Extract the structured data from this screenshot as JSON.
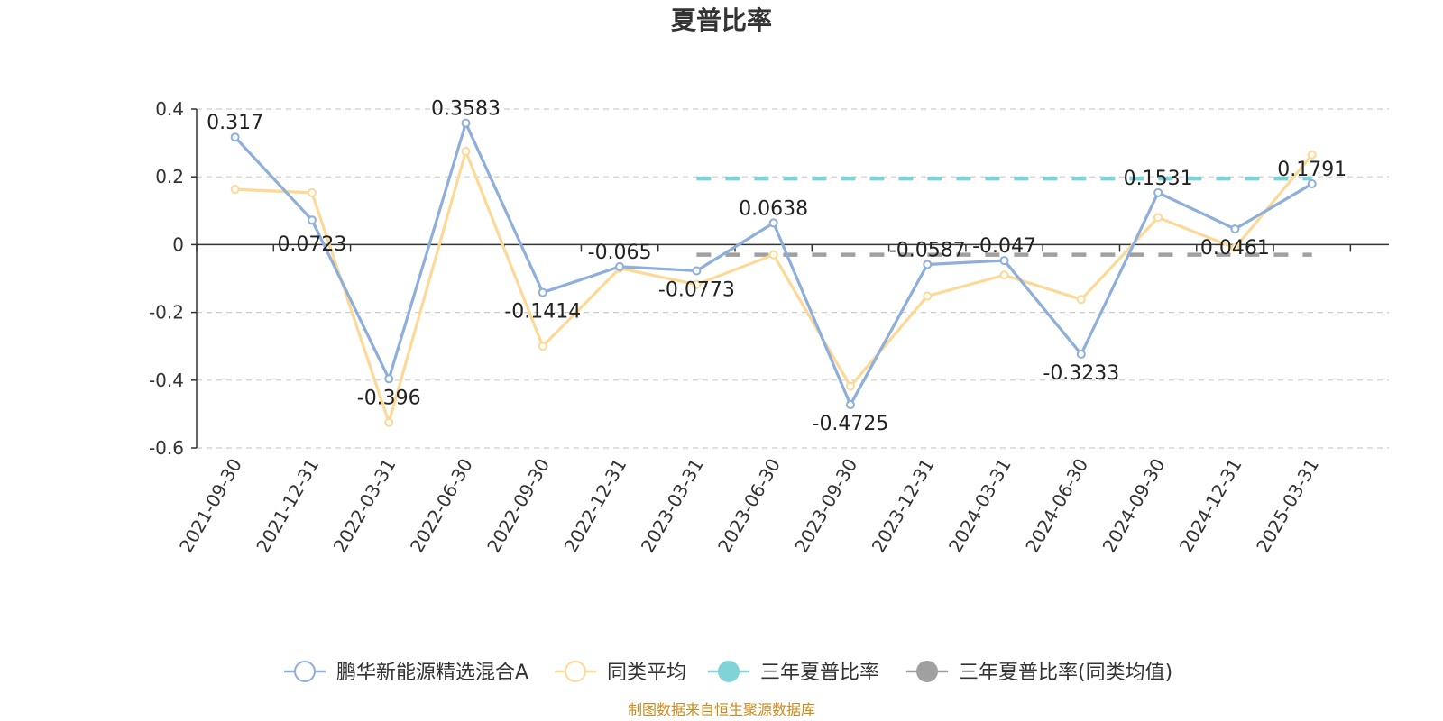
{
  "chart_data": {
    "type": "line",
    "title": "夏普比率",
    "categories": [
      "2021-09-30",
      "2021-12-31",
      "2022-03-31",
      "2022-06-30",
      "2022-09-30",
      "2022-12-31",
      "2023-03-31",
      "2023-06-30",
      "2023-09-30",
      "2023-12-31",
      "2024-03-31",
      "2024-06-30",
      "2024-09-30",
      "2024-12-31",
      "2025-03-31"
    ],
    "y_ticks": [
      "0.4",
      "0.2",
      "0",
      "-0.2",
      "-0.4",
      "-0.6"
    ],
    "ylim": [
      -0.6,
      0.4
    ],
    "grid": "horizontal dashed",
    "legend_position": "bottom",
    "series": [
      {
        "name": "鹏华新能源精选混合A",
        "color": "#8eaedb",
        "values": [
          0.317,
          0.0723,
          -0.396,
          0.3583,
          -0.1414,
          -0.065,
          -0.0773,
          0.0638,
          -0.4725,
          -0.0587,
          -0.047,
          -0.3233,
          0.1531,
          0.0461,
          0.1791
        ],
        "labels": [
          "0.317",
          "0.0723",
          "-0.396",
          "0.3583",
          "-0.1414",
          "-0.065",
          "-0.0773",
          "0.0638",
          "-0.4725",
          "-0.0587",
          "-0.047",
          "-0.3233",
          "0.1531",
          "0.0461",
          "0.1791"
        ]
      },
      {
        "name": "同类平均",
        "color": "#fcd996",
        "values": [
          0.163,
          0.153,
          -0.525,
          0.275,
          -0.3,
          -0.07,
          -0.118,
          -0.03,
          -0.418,
          -0.152,
          -0.09,
          -0.162,
          0.08,
          -0.01,
          0.265
        ]
      },
      {
        "name": "三年夏普比率",
        "color": "#7fd3d6",
        "value": 0.195,
        "from": "2023-03-31",
        "to": "2025-03-31"
      },
      {
        "name": "三年夏普比率(同类均值)",
        "color": "#a0a0a0",
        "value": -0.03,
        "from": "2023-03-31",
        "to": "2025-03-31"
      }
    ]
  },
  "source_text": "制图数据来自恒生聚源数据库"
}
